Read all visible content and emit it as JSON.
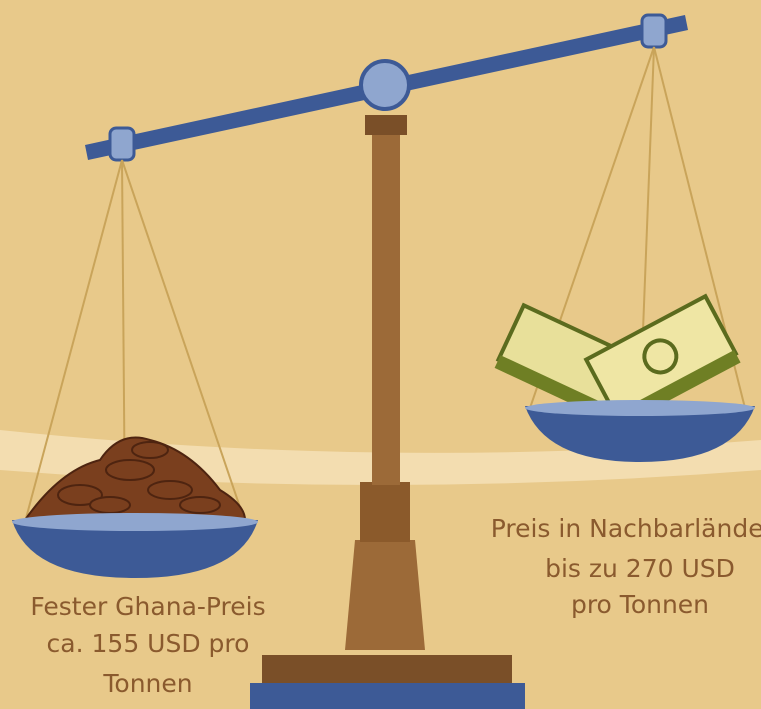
{
  "left_label": {
    "lines": [
      "Fester Ghana-Preis",
      "ca. 155 USD pro",
      "Tonnen"
    ]
  },
  "right_label": {
    "lines": [
      "Preis in Nachbarländern",
      "bis zu 270 USD",
      "pro Tonnen"
    ]
  }
}
